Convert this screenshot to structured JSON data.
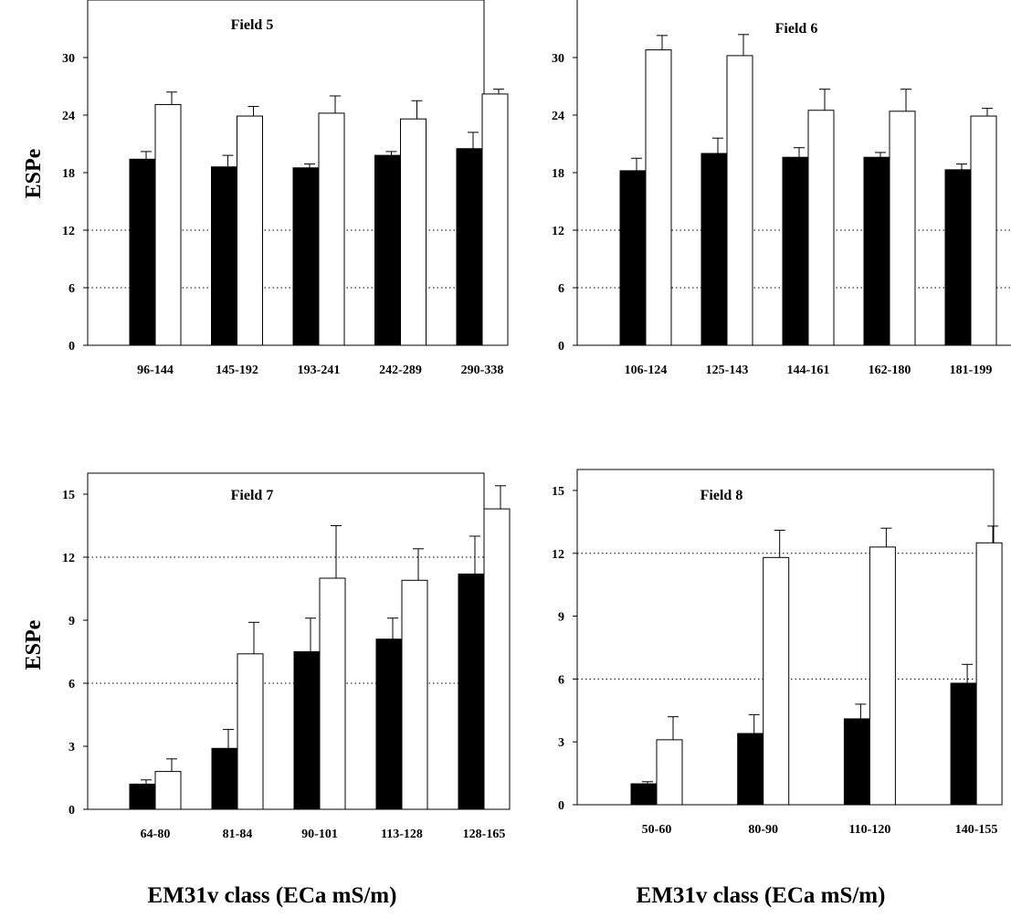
{
  "figure": {
    "ylabel_top": "ESPe",
    "ylabel_bottom": "ESPe",
    "xlabel_left": "EM31v class (ECa mS/m)",
    "xlabel_right": "EM31v class (ECa mS/m)"
  },
  "chart_data": [
    {
      "type": "bar",
      "title": "Field 5",
      "categories": [
        "96-144",
        "145-192",
        "193-241",
        "242-289",
        "290-338"
      ],
      "series": [
        {
          "values": [
            19.4,
            18.6,
            18.5,
            19.8,
            20.5
          ],
          "errors": [
            0.8,
            1.2,
            0.4,
            0.4,
            1.7
          ],
          "color": "#000000"
        },
        {
          "values": [
            25.1,
            23.9,
            24.2,
            23.6,
            26.2
          ],
          "errors": [
            1.3,
            1.0,
            1.8,
            1.9,
            0.5
          ],
          "color": "#ffffff"
        }
      ],
      "ylim": [
        0,
        36
      ],
      "yticks": [
        0,
        6,
        12,
        18,
        24,
        30
      ],
      "gridlines": [
        6,
        12
      ]
    },
    {
      "type": "bar",
      "title": "Field 6",
      "categories": [
        "106-124",
        "125-143",
        "144-161",
        "162-180",
        "181-199"
      ],
      "series": [
        {
          "values": [
            18.2,
            20.0,
            19.6,
            19.6,
            18.3
          ],
          "errors": [
            1.3,
            1.6,
            1.0,
            0.5,
            0.6
          ],
          "color": "#000000"
        },
        {
          "values": [
            30.8,
            30.2,
            24.5,
            24.4,
            23.9
          ],
          "errors": [
            1.5,
            2.2,
            2.2,
            2.3,
            0.8
          ],
          "color": "#ffffff"
        }
      ],
      "ylim": [
        0,
        36
      ],
      "yticks": [
        0,
        6,
        12,
        18,
        24,
        30
      ],
      "gridlines": [
        6,
        12
      ]
    },
    {
      "type": "bar",
      "title": "Field 7",
      "categories": [
        "64-80",
        "81-84",
        "90-101",
        "113-128",
        "128-165"
      ],
      "series": [
        {
          "values": [
            1.2,
            2.9,
            7.5,
            8.1,
            11.2
          ],
          "errors": [
            0.2,
            0.9,
            1.6,
            1.0,
            1.8
          ],
          "color": "#000000"
        },
        {
          "values": [
            1.8,
            7.4,
            11.0,
            10.9,
            14.3
          ],
          "errors": [
            0.6,
            1.5,
            2.5,
            1.5,
            1.1
          ],
          "color": "#ffffff"
        }
      ],
      "ylim": [
        0,
        16
      ],
      "yticks": [
        0,
        3,
        6,
        9,
        12,
        15
      ],
      "gridlines": [
        6,
        12
      ]
    },
    {
      "type": "bar",
      "title": "Field 8",
      "categories": [
        "50-60",
        "80-90",
        "110-120",
        "140-155"
      ],
      "series": [
        {
          "values": [
            1.0,
            3.4,
            4.1,
            5.8
          ],
          "errors": [
            0.1,
            0.9,
            0.7,
            0.9
          ],
          "color": "#000000"
        },
        {
          "values": [
            3.1,
            11.8,
            12.3,
            12.5
          ],
          "errors": [
            1.1,
            1.3,
            0.9,
            0.8
          ],
          "color": "#ffffff"
        }
      ],
      "ylim": [
        0,
        16
      ],
      "yticks": [
        0,
        3,
        6,
        9,
        12,
        15
      ],
      "gridlines": [
        6,
        12
      ]
    }
  ]
}
